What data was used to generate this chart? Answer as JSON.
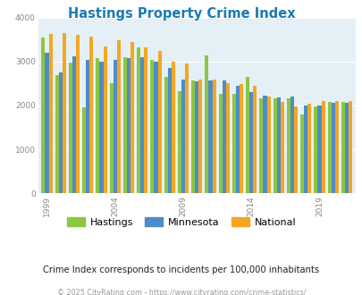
{
  "title": "Hastings Property Crime Index",
  "years": [
    1999,
    2000,
    2001,
    2002,
    2003,
    2004,
    2005,
    2006,
    2007,
    2008,
    2009,
    2010,
    2011,
    2012,
    2013,
    2014,
    2015,
    2016,
    2017,
    2018,
    2019,
    2020,
    2021
  ],
  "hastings": [
    3550,
    2700,
    2970,
    1960,
    3080,
    2500,
    3090,
    3330,
    3040,
    2650,
    2320,
    2560,
    3150,
    2260,
    2270,
    2650,
    2160,
    2160,
    2170,
    1800,
    1970,
    2080,
    2080
  ],
  "minnesota": [
    3200,
    2760,
    3110,
    3030,
    3000,
    3030,
    3080,
    3100,
    3000,
    2850,
    2600,
    2540,
    2570,
    2560,
    2440,
    2310,
    2230,
    2190,
    2200,
    2000,
    1990,
    2070,
    2060
  ],
  "national": [
    3620,
    3640,
    3610,
    3560,
    3350,
    3480,
    3440,
    3320,
    3240,
    3000,
    2960,
    2600,
    2600,
    2500,
    2480,
    2440,
    2210,
    2090,
    1970,
    2050,
    2100,
    2100,
    2100
  ],
  "color_hastings": "#8dc641",
  "color_minnesota": "#4d8dc6",
  "color_national": "#f5a623",
  "bg_color": "#e4f0f6",
  "ylim": [
    0,
    4000
  ],
  "yticks": [
    0,
    1000,
    2000,
    3000,
    4000
  ],
  "xlabel_years": [
    1999,
    2004,
    2009,
    2014,
    2019
  ],
  "subtitle": "Crime Index corresponds to incidents per 100,000 inhabitants",
  "footer": "© 2025 CityRating.com - https://www.cityrating.com/crime-statistics/",
  "title_color": "#1a7ab5",
  "subtitle_color": "#222222",
  "footer_color": "#999999"
}
